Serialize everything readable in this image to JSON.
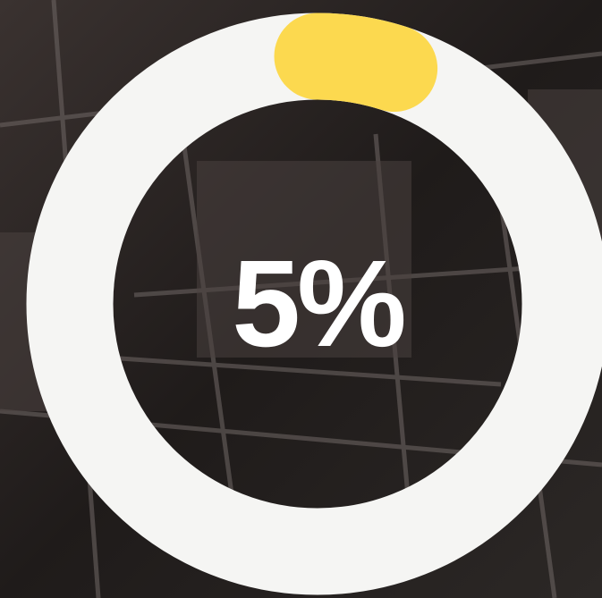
{
  "chart_data": {
    "type": "progress-ring",
    "values": [
      5
    ],
    "value_labels": [
      "5%"
    ],
    "track_color": "#f5f5f3",
    "color": "#fcd94f"
  }
}
